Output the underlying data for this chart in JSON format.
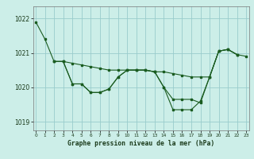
{
  "title": "Graphe pression niveau de la mer (hPa)",
  "bg_color": "#cceee8",
  "grid_color": "#99cccc",
  "line_color": "#1a5c20",
  "xlim": [
    -0.3,
    23.3
  ],
  "ylim": [
    1018.75,
    1022.35
  ],
  "yticks": [
    1019,
    1020,
    1021,
    1022
  ],
  "xtick_labels": [
    "0",
    "1",
    "2",
    "3",
    "4",
    "5",
    "6",
    "7",
    "8",
    "9",
    "10",
    "11",
    "12",
    "13",
    "14",
    "15",
    "16",
    "17",
    "18",
    "19",
    "20",
    "21",
    "22",
    "23"
  ],
  "xticks": [
    0,
    1,
    2,
    3,
    4,
    5,
    6,
    7,
    8,
    9,
    10,
    11,
    12,
    13,
    14,
    15,
    16,
    17,
    18,
    19,
    20,
    21,
    22,
    23
  ],
  "series": [
    {
      "x": [
        0,
        1,
        2,
        3,
        4,
        5,
        6,
        7,
        8,
        9,
        10,
        11,
        12,
        13,
        14,
        15,
        16,
        17,
        18,
        19,
        20,
        21,
        22,
        23
      ],
      "y": [
        1021.9,
        1021.4,
        1020.75,
        1020.75,
        1020.7,
        1020.65,
        1020.6,
        1020.55,
        1020.5,
        1020.5,
        1020.5,
        1020.5,
        1020.5,
        1020.45,
        1020.45,
        1020.4,
        1020.35,
        1020.3,
        1020.3,
        1020.3,
        1021.05,
        1021.1,
        1020.95,
        1020.9
      ]
    },
    {
      "x": [
        2,
        3,
        4,
        5,
        6,
        7,
        8,
        9,
        10,
        11,
        12,
        13,
        14,
        15,
        16,
        17,
        18,
        19,
        20,
        21,
        22
      ],
      "y": [
        1020.75,
        1020.75,
        1020.1,
        1020.1,
        1019.85,
        1019.85,
        1019.95,
        1020.3,
        1020.5,
        1020.5,
        1020.5,
        1020.45,
        1020.0,
        1019.65,
        1019.65,
        1019.65,
        1019.55,
        1020.3,
        1021.05,
        1021.1,
        1020.95
      ]
    },
    {
      "x": [
        2,
        3,
        4,
        5,
        6,
        7,
        8,
        9,
        10,
        11,
        12,
        13,
        14,
        15,
        16,
        17,
        18,
        19,
        20,
        21,
        22
      ],
      "y": [
        1020.75,
        1020.75,
        1020.1,
        1020.1,
        1019.85,
        1019.85,
        1019.95,
        1020.3,
        1020.5,
        1020.5,
        1020.5,
        1020.45,
        1020.0,
        1019.35,
        1019.35,
        1019.35,
        1019.6,
        1020.3,
        1021.05,
        1021.1,
        1020.95
      ]
    }
  ]
}
